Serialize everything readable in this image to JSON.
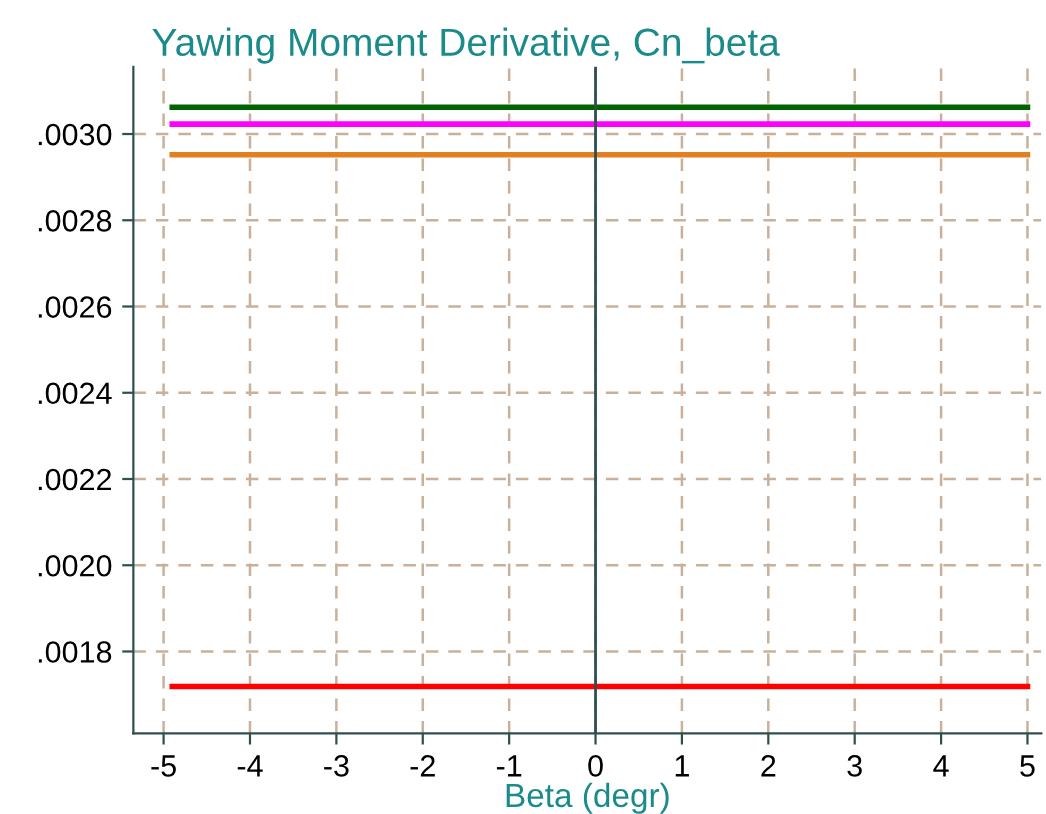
{
  "chart_data": {
    "type": "line",
    "title": "Yawing Moment Derivative, Cn_beta",
    "xlabel": "Beta (degr)",
    "x": [
      -4.9,
      5
    ],
    "series": [
      {
        "color": "#006400",
        "values": [
          0.003062,
          0.003062
        ]
      },
      {
        "color": "#ff00ff",
        "values": [
          0.003023,
          0.003023
        ]
      },
      {
        "color": "#e08020",
        "values": [
          0.002952,
          0.002952
        ]
      },
      {
        "color": "#ff0000",
        "values": [
          0.001719,
          0.001719
        ]
      }
    ],
    "xlim": [
      -5.35,
      5.16
    ],
    "xticks": [
      -5,
      -4,
      -3,
      -2,
      -1,
      0,
      1,
      2,
      3,
      4,
      5
    ],
    "ylim": [
      0.00161,
      0.003156
    ],
    "yticks": [
      {
        "value": 0.0018,
        "label": ".0018"
      },
      {
        "value": 0.002,
        "label": ".0020"
      },
      {
        "value": 0.0022,
        "label": ".0022"
      },
      {
        "value": 0.0024,
        "label": ".0024"
      },
      {
        "value": 0.0026,
        "label": ".0026"
      },
      {
        "value": 0.0028,
        "label": ".0028"
      },
      {
        "value": 0.003,
        "label": ".0030"
      }
    ],
    "ref_lines": [
      {
        "axis": "x",
        "value": 0,
        "color": "#2f4f4f"
      }
    ],
    "grid": true,
    "marker": "none",
    "line_style": "solid",
    "legend": false
  }
}
